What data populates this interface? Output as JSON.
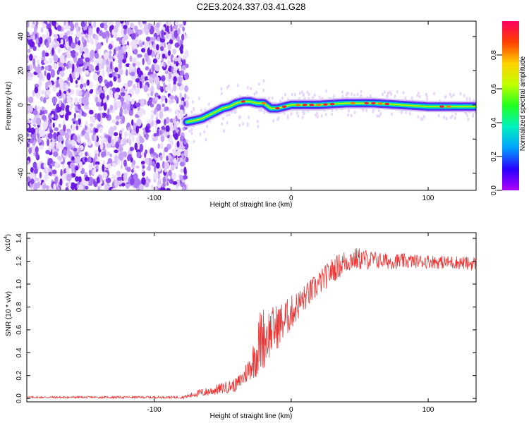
{
  "title": "C2E3.2024.337.03.41.G28",
  "chart_data": [
    {
      "type": "heatmap",
      "xlabel": "Height of straight line (km)",
      "ylabel": "Frequency (Hz)",
      "xlim": [
        -193,
        135
      ],
      "ylim": [
        -50,
        49
      ],
      "xticks": [
        -100,
        0,
        100
      ],
      "yticks": [
        -40,
        -20,
        0,
        20,
        40
      ],
      "colorbar": {
        "label": "Normalized spectral amplitude",
        "range": [
          0,
          1
        ],
        "ticks": [
          "0.0",
          "0.2",
          "0.4",
          "0.6",
          "0.8"
        ],
        "colors": [
          "#b000ff",
          "#2a00ff",
          "#00a0ff",
          "#00f0c0",
          "#20ff20",
          "#c0ff00",
          "#ffd000",
          "#ff4000",
          "#ff0060"
        ]
      },
      "noise_region_x": [
        -193,
        -76
      ],
      "track": {
        "x": [
          -76,
          -70,
          -65,
          -60,
          -55,
          -50,
          -45,
          -40,
          -35,
          -30,
          -25,
          -20,
          -15,
          -10,
          0,
          20,
          40,
          60,
          80,
          100,
          120,
          135
        ],
        "freq": [
          -10,
          -9,
          -8,
          -6,
          -4,
          -2,
          -1,
          1,
          2,
          2,
          1,
          1,
          -2,
          -2,
          0,
          0,
          1,
          1,
          0,
          -1,
          -1,
          -1
        ]
      },
      "peak_points_x": [
        -35,
        -20,
        -10,
        -5,
        5,
        10,
        15,
        20,
        25,
        30,
        45,
        55,
        60,
        65,
        70,
        110,
        115
      ]
    },
    {
      "type": "line",
      "xlabel": "Height of straight line (km)",
      "ylabel": "SNR (10 * v/v)",
      "yscale_label": "(x10",
      "yscale_exp": "4",
      "xlim": [
        -193,
        135
      ],
      "ylim": [
        -0.03,
        1.45
      ],
      "xticks": [
        -100,
        0,
        100
      ],
      "yticks": [
        0.0,
        0.2,
        0.4,
        0.6,
        0.8,
        1.0,
        1.2,
        1.4
      ],
      "series": [
        {
          "color": "#ee3333",
          "x": [
            -193,
            -80,
            -75,
            -70,
            -60,
            -50,
            -40,
            -35,
            -30,
            -25,
            -22,
            -18,
            -15,
            -10,
            -5,
            0,
            10,
            20,
            30,
            40,
            45,
            50,
            60,
            70,
            80,
            90,
            100,
            110,
            120,
            130,
            135
          ],
          "baseline": [
            0.01,
            0.01,
            0.02,
            0.04,
            0.06,
            0.09,
            0.12,
            0.18,
            0.28,
            0.4,
            0.52,
            0.55,
            0.58,
            0.63,
            0.68,
            0.75,
            0.88,
            1.0,
            1.12,
            1.2,
            1.22,
            1.22,
            1.21,
            1.2,
            1.2,
            1.2,
            1.2,
            1.19,
            1.19,
            1.18,
            1.18
          ],
          "noise": [
            0.008,
            0.01,
            0.02,
            0.03,
            0.04,
            0.05,
            0.06,
            0.08,
            0.12,
            0.22,
            0.3,
            0.26,
            0.22,
            0.2,
            0.18,
            0.15,
            0.12,
            0.11,
            0.11,
            0.11,
            0.1,
            0.1,
            0.08,
            0.07,
            0.07,
            0.06,
            0.06,
            0.06,
            0.06,
            0.06,
            0.06
          ]
        }
      ]
    }
  ]
}
